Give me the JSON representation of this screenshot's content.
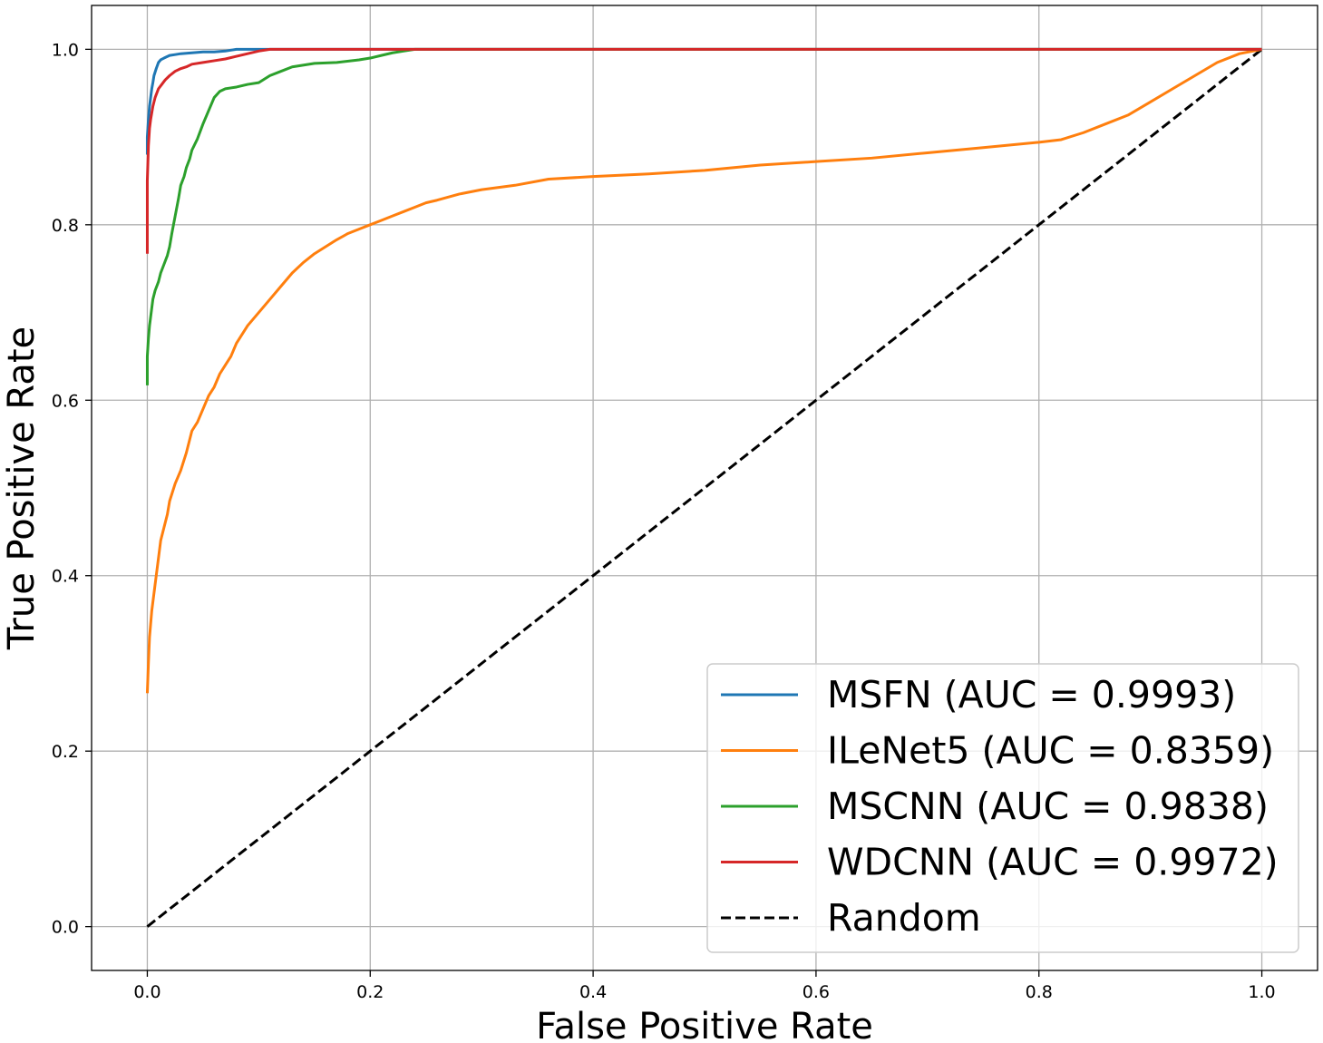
{
  "chart_data": {
    "type": "line",
    "title": "",
    "xlabel": "False Positive Rate",
    "ylabel": "True Positive Rate",
    "xlim": [
      -0.05,
      1.05
    ],
    "ylim": [
      -0.05,
      1.05
    ],
    "xticks": [
      0.0,
      0.2,
      0.4,
      0.6,
      0.8,
      1.0
    ],
    "yticks": [
      0.0,
      0.2,
      0.4,
      0.6,
      0.8,
      1.0
    ],
    "xtick_labels": [
      "0.0",
      "0.2",
      "0.4",
      "0.6",
      "0.8",
      "1.0"
    ],
    "ytick_labels": [
      "0.0",
      "0.2",
      "0.4",
      "0.6",
      "0.8",
      "1.0"
    ],
    "grid": true,
    "legend_position": "lower-right",
    "series": [
      {
        "name": "MSFN (AUC = 0.9993)",
        "color": "#1f77b4",
        "style": "solid",
        "x": [
          0.0,
          0.0,
          0.001,
          0.002,
          0.003,
          0.004,
          0.005,
          0.006,
          0.008,
          0.01,
          0.012,
          0.015,
          0.02,
          0.025,
          0.03,
          0.04,
          0.05,
          0.06,
          0.07,
          0.075,
          0.08,
          0.1,
          0.2,
          0.5,
          1.0
        ],
        "y": [
          0.88,
          0.9,
          0.92,
          0.935,
          0.945,
          0.955,
          0.962,
          0.97,
          0.978,
          0.985,
          0.988,
          0.99,
          0.993,
          0.994,
          0.995,
          0.996,
          0.997,
          0.997,
          0.998,
          0.999,
          1.0,
          1.0,
          1.0,
          1.0,
          1.0
        ]
      },
      {
        "name": "ILeNet5 (AUC = 0.8359)",
        "color": "#ff7f0e",
        "style": "solid",
        "x": [
          0.0,
          0.001,
          0.002,
          0.004,
          0.006,
          0.008,
          0.01,
          0.012,
          0.015,
          0.018,
          0.02,
          0.025,
          0.03,
          0.035,
          0.04,
          0.045,
          0.05,
          0.055,
          0.06,
          0.065,
          0.07,
          0.075,
          0.08,
          0.09,
          0.1,
          0.11,
          0.12,
          0.13,
          0.14,
          0.15,
          0.16,
          0.17,
          0.18,
          0.19,
          0.2,
          0.21,
          0.22,
          0.23,
          0.24,
          0.25,
          0.26,
          0.28,
          0.3,
          0.33,
          0.36,
          0.4,
          0.45,
          0.5,
          0.55,
          0.6,
          0.65,
          0.7,
          0.75,
          0.8,
          0.82,
          0.84,
          0.86,
          0.88,
          0.9,
          0.92,
          0.94,
          0.96,
          0.98,
          1.0
        ],
        "y": [
          0.266,
          0.3,
          0.33,
          0.36,
          0.38,
          0.4,
          0.42,
          0.44,
          0.455,
          0.47,
          0.485,
          0.505,
          0.52,
          0.54,
          0.565,
          0.575,
          0.59,
          0.605,
          0.615,
          0.63,
          0.64,
          0.65,
          0.665,
          0.685,
          0.7,
          0.715,
          0.73,
          0.745,
          0.757,
          0.767,
          0.775,
          0.783,
          0.79,
          0.795,
          0.8,
          0.805,
          0.81,
          0.815,
          0.82,
          0.825,
          0.828,
          0.835,
          0.84,
          0.845,
          0.852,
          0.855,
          0.858,
          0.862,
          0.868,
          0.872,
          0.876,
          0.882,
          0.888,
          0.894,
          0.897,
          0.905,
          0.915,
          0.925,
          0.94,
          0.955,
          0.97,
          0.985,
          0.995,
          1.0
        ]
      },
      {
        "name": "MSCNN (AUC = 0.9838)",
        "color": "#2ca02c",
        "style": "solid",
        "x": [
          0.0,
          0.0,
          0.001,
          0.002,
          0.003,
          0.004,
          0.005,
          0.007,
          0.01,
          0.012,
          0.015,
          0.018,
          0.02,
          0.022,
          0.025,
          0.028,
          0.03,
          0.033,
          0.035,
          0.038,
          0.04,
          0.045,
          0.05,
          0.055,
          0.06,
          0.065,
          0.07,
          0.08,
          0.09,
          0.1,
          0.11,
          0.12,
          0.13,
          0.15,
          0.17,
          0.19,
          0.2,
          0.21,
          0.22,
          0.23,
          0.24,
          0.3,
          0.5,
          1.0
        ],
        "y": [
          0.617,
          0.65,
          0.67,
          0.685,
          0.695,
          0.705,
          0.715,
          0.725,
          0.735,
          0.745,
          0.755,
          0.765,
          0.775,
          0.79,
          0.81,
          0.83,
          0.845,
          0.855,
          0.865,
          0.875,
          0.885,
          0.898,
          0.915,
          0.93,
          0.945,
          0.952,
          0.955,
          0.957,
          0.96,
          0.962,
          0.97,
          0.975,
          0.98,
          0.984,
          0.985,
          0.988,
          0.99,
          0.993,
          0.996,
          0.998,
          1.0,
          1.0,
          1.0,
          1.0
        ]
      },
      {
        "name": "WDCNN (AUC = 0.9972)",
        "color": "#d62728",
        "style": "solid",
        "x": [
          0.0,
          0.0,
          0.001,
          0.002,
          0.003,
          0.005,
          0.007,
          0.01,
          0.013,
          0.016,
          0.02,
          0.025,
          0.03,
          0.035,
          0.04,
          0.05,
          0.06,
          0.07,
          0.08,
          0.09,
          0.1,
          0.11,
          0.15,
          0.2,
          0.5,
          1.0
        ],
        "y": [
          0.767,
          0.85,
          0.89,
          0.91,
          0.92,
          0.935,
          0.945,
          0.955,
          0.96,
          0.965,
          0.97,
          0.975,
          0.978,
          0.98,
          0.983,
          0.985,
          0.987,
          0.989,
          0.992,
          0.995,
          0.998,
          1.0,
          1.0,
          1.0,
          1.0,
          1.0
        ]
      },
      {
        "name": "Random",
        "color": "#000000",
        "style": "dashed",
        "x": [
          0.0,
          1.0
        ],
        "y": [
          0.0,
          1.0
        ]
      }
    ]
  }
}
